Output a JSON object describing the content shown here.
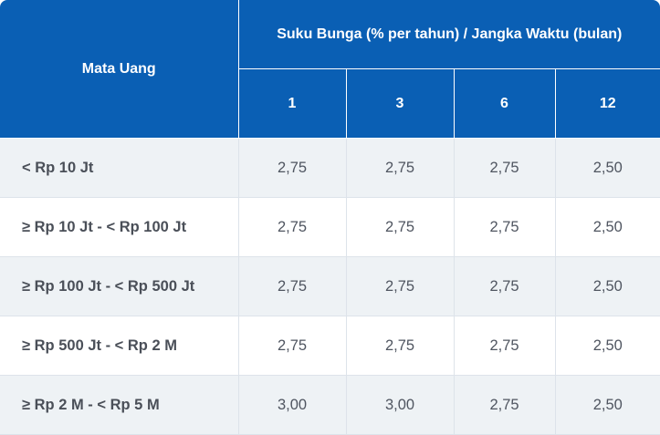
{
  "header": {
    "currency_label": "Mata Uang",
    "rate_label": "Suku Bunga (% per tahun) / Jangka Waktu (bulan)",
    "terms": [
      "1",
      "3",
      "6",
      "12"
    ]
  },
  "rows": [
    {
      "label": "< Rp 10 Jt",
      "values": [
        "2,75",
        "2,75",
        "2,75",
        "2,50"
      ]
    },
    {
      "label": "≥ Rp 10 Jt - < Rp 100 Jt",
      "values": [
        "2,75",
        "2,75",
        "2,75",
        "2,50"
      ]
    },
    {
      "label": "≥ Rp 100 Jt - < Rp 500 Jt",
      "values": [
        "2,75",
        "2,75",
        "2,75",
        "2,50"
      ]
    },
    {
      "label": "≥ Rp 500 Jt - < Rp 2 M",
      "values": [
        "2,75",
        "2,75",
        "2,75",
        "2,50"
      ]
    },
    {
      "label": "≥ Rp 2 M - < Rp 5 M",
      "values": [
        "3,00",
        "3,00",
        "2,75",
        "2,50"
      ]
    }
  ],
  "colors": {
    "header_bg": "#0a5fb4",
    "row_alt_bg": "#eef2f5",
    "text": "#4f5560"
  }
}
